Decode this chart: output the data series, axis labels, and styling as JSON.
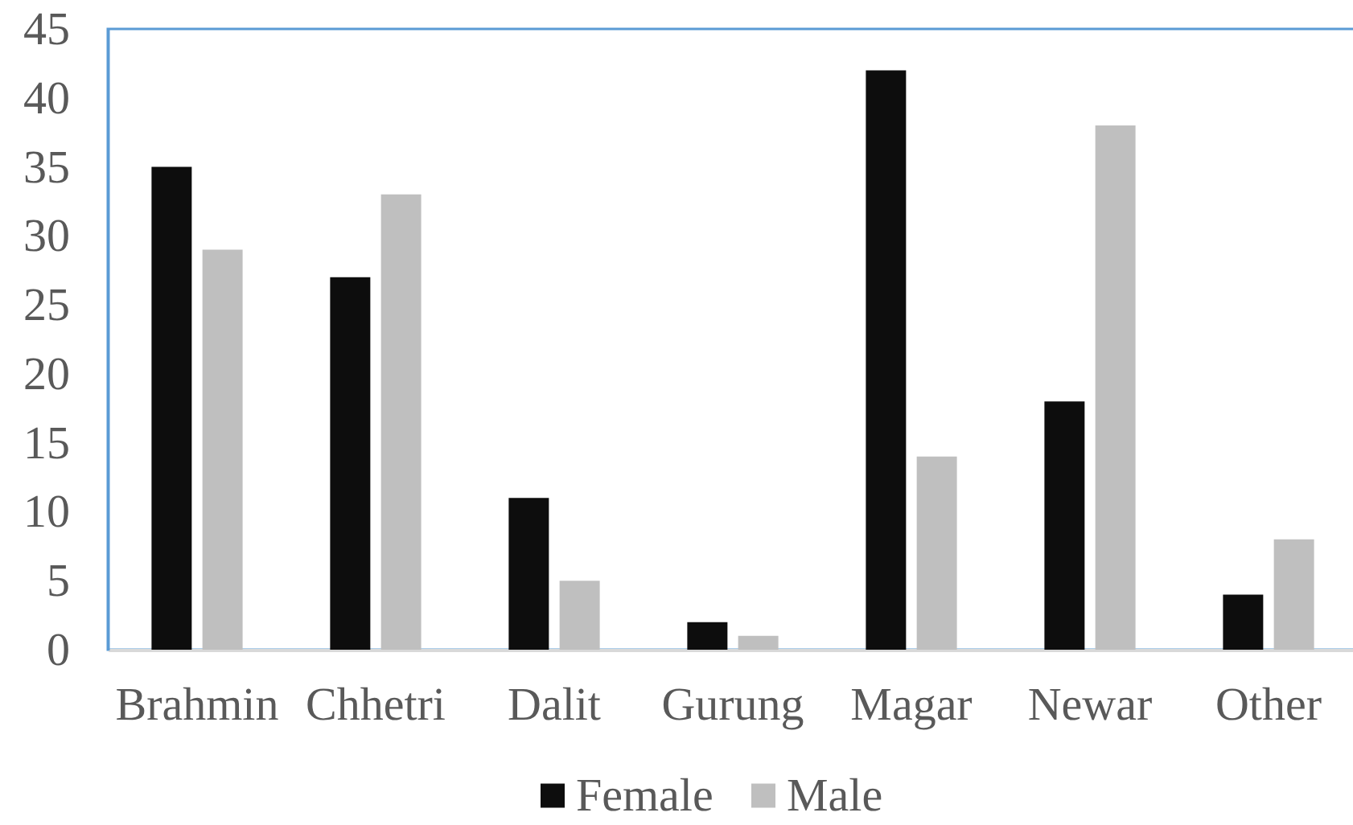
{
  "chart_data": {
    "type": "bar",
    "categories": [
      "Brahmin",
      "Chhetri",
      "Dalit",
      "Gurung",
      "Magar",
      "Newar",
      "Other"
    ],
    "series": [
      {
        "name": "Female",
        "color": "#0d0d0d",
        "values": [
          35,
          27,
          11,
          2,
          42,
          18,
          4
        ]
      },
      {
        "name": "Male",
        "color": "#bfbfbf",
        "values": [
          29,
          33,
          5,
          1,
          14,
          38,
          8
        ]
      }
    ],
    "ylim": [
      0,
      45
    ],
    "yticks": [
      0,
      5,
      10,
      15,
      20,
      25,
      30,
      35,
      40,
      45
    ],
    "legend": "bottom"
  }
}
